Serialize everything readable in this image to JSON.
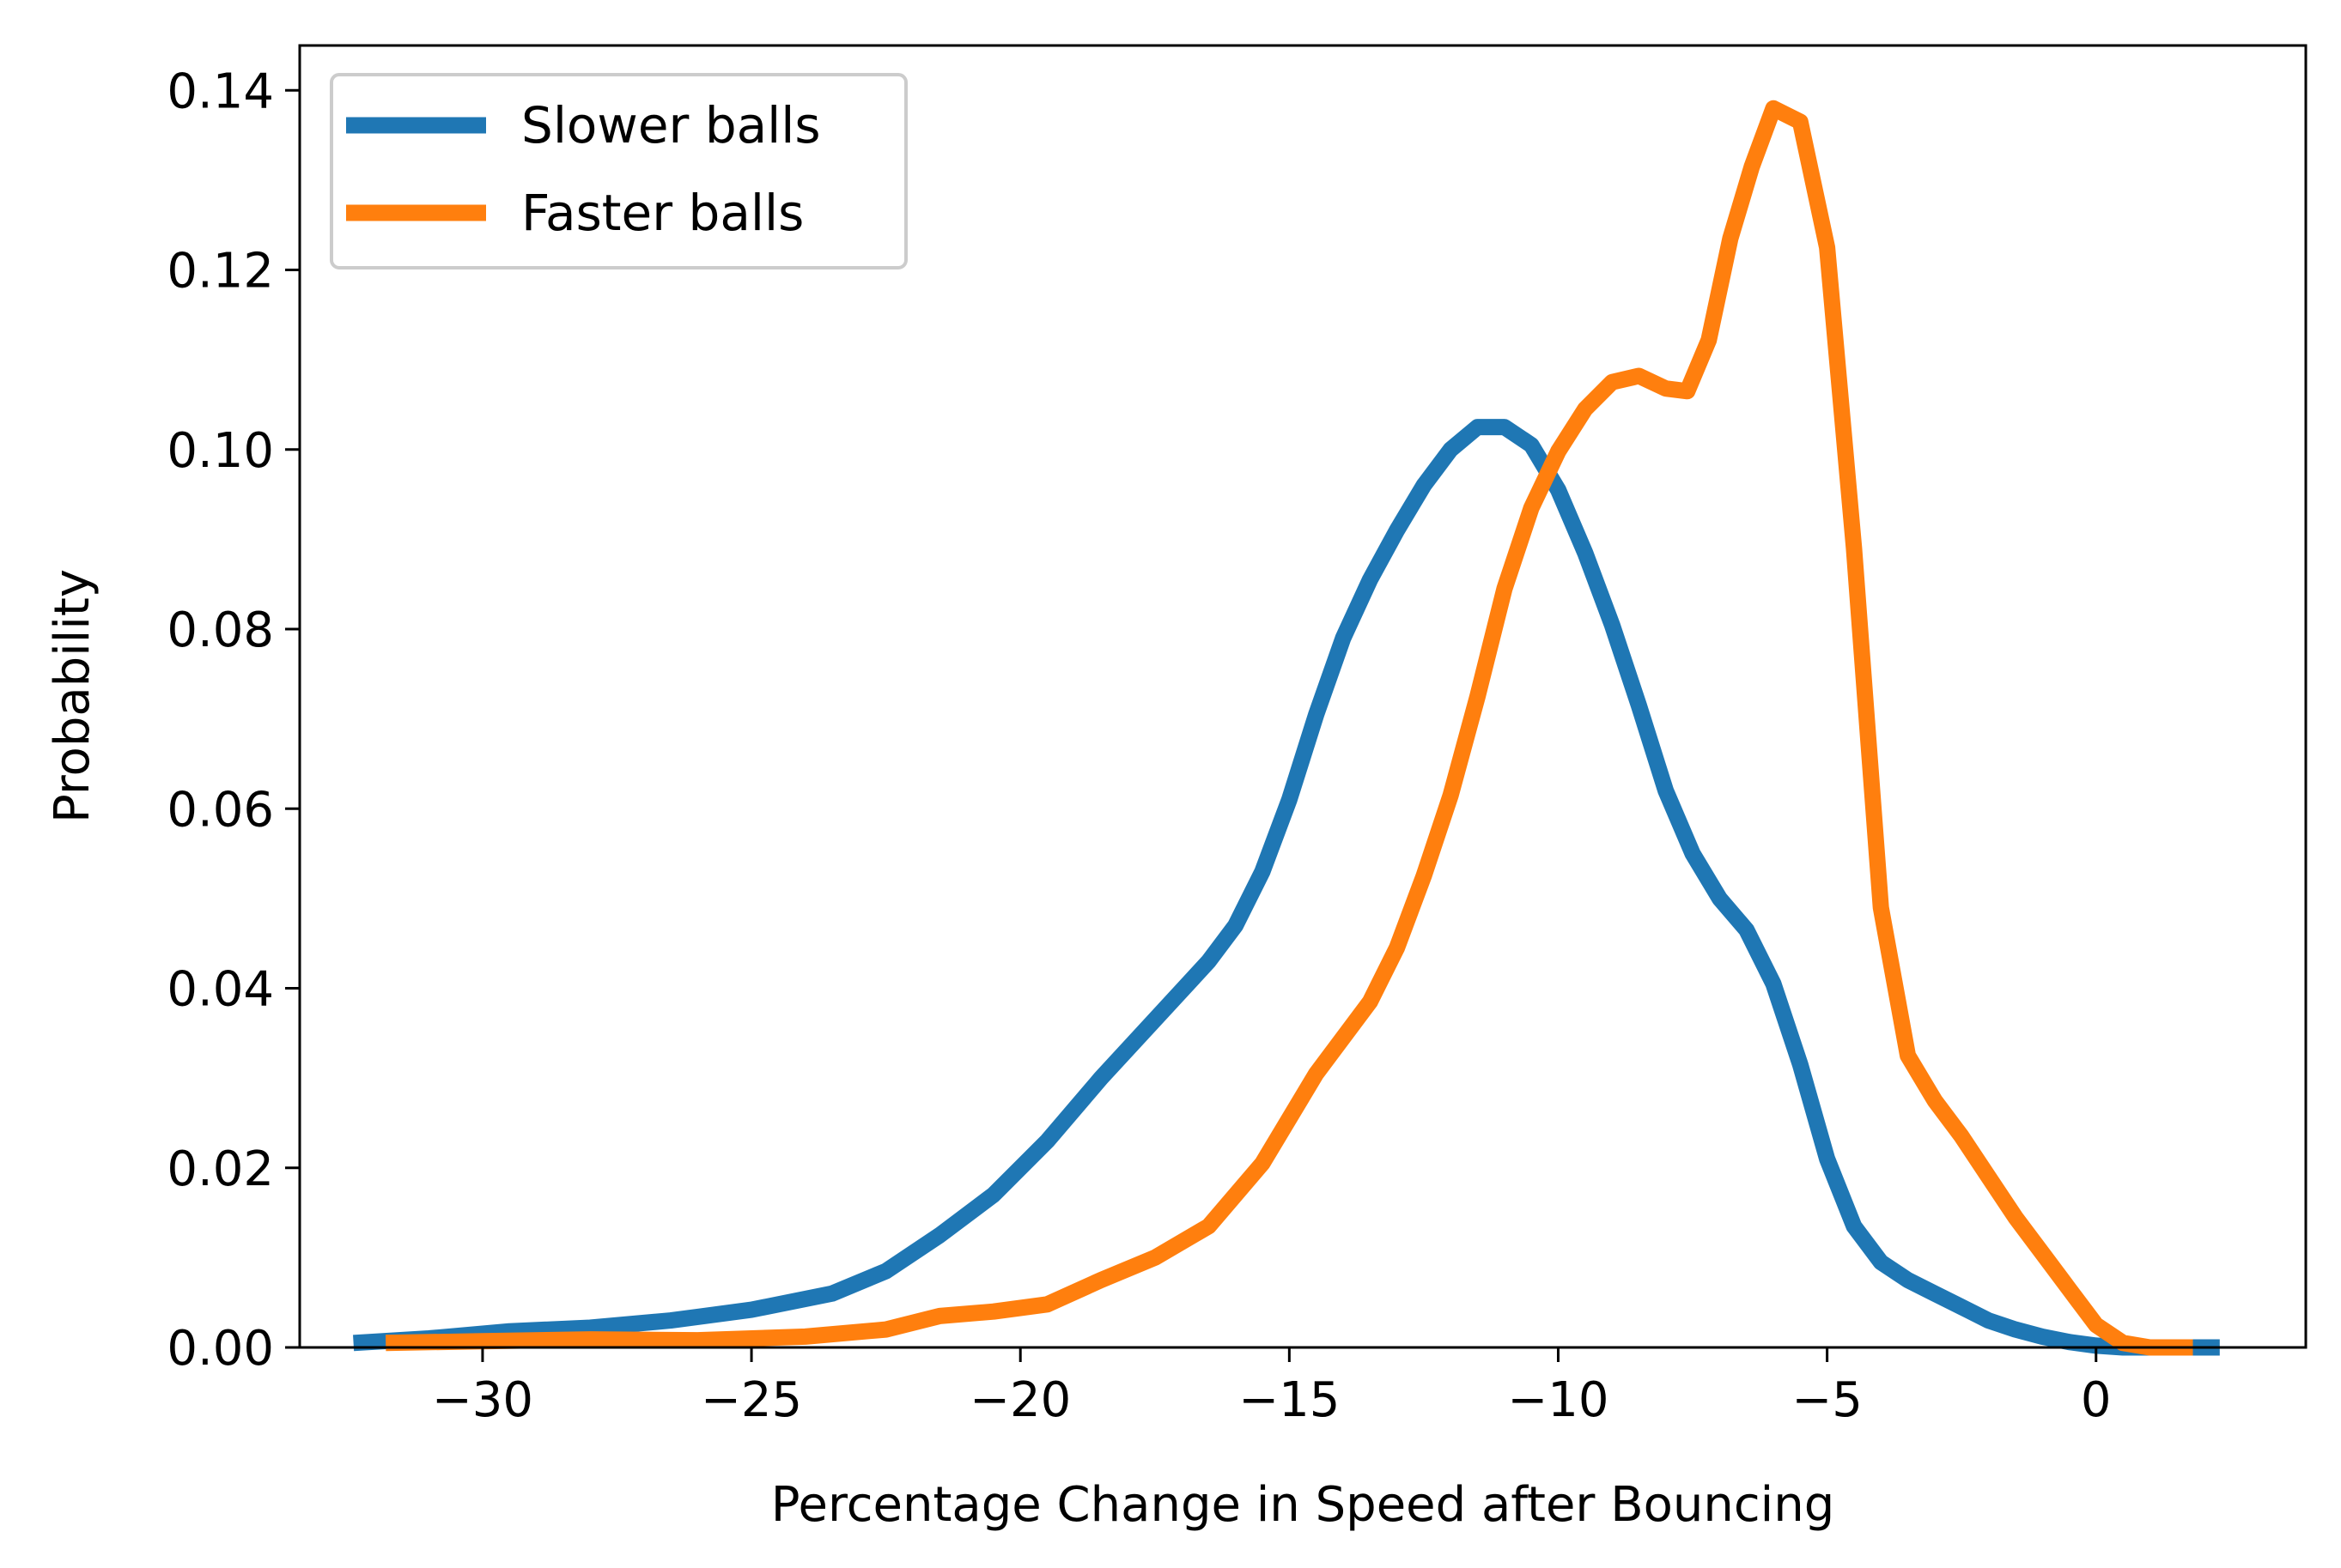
{
  "chart_data": {
    "type": "line",
    "title": "",
    "xlabel": "Percentage Change in Speed after Bouncing",
    "ylabel": "Probability",
    "xlim": [
      -33.4,
      3.9
    ],
    "ylim": [
      0.0,
      0.145
    ],
    "grid": false,
    "legend": {
      "placement": "upper-left"
    },
    "x_ticks": [
      {
        "value": -30,
        "label": "−30"
      },
      {
        "value": -25,
        "label": "−25"
      },
      {
        "value": -20,
        "label": "−20"
      },
      {
        "value": -15,
        "label": "−15"
      },
      {
        "value": -10,
        "label": "−10"
      },
      {
        "value": -5,
        "label": "−5"
      },
      {
        "value": 0,
        "label": "0"
      }
    ],
    "y_ticks": [
      {
        "value": 0.0,
        "label": "0.00"
      },
      {
        "value": 0.02,
        "label": "0.02"
      },
      {
        "value": 0.04,
        "label": "0.04"
      },
      {
        "value": 0.06,
        "label": "0.06"
      },
      {
        "value": 0.08,
        "label": "0.08"
      },
      {
        "value": 0.1,
        "label": "0.10"
      },
      {
        "value": 0.12,
        "label": "0.12"
      },
      {
        "value": 0.14,
        "label": "0.14"
      }
    ],
    "series": [
      {
        "name": "Slower balls",
        "color": "#1f77b4",
        "points": [
          [
            -32.4,
            0.0005
          ],
          [
            -31,
            0.001
          ],
          [
            -29.5,
            0.0018
          ],
          [
            -28,
            0.0022
          ],
          [
            -26.5,
            0.003
          ],
          [
            -25,
            0.0042
          ],
          [
            -23.5,
            0.006
          ],
          [
            -22.5,
            0.0085
          ],
          [
            -21.5,
            0.0125
          ],
          [
            -20.5,
            0.017
          ],
          [
            -19.5,
            0.023
          ],
          [
            -18.5,
            0.03
          ],
          [
            -17.5,
            0.0365
          ],
          [
            -16.5,
            0.043
          ],
          [
            -16,
            0.047
          ],
          [
            -15.5,
            0.053
          ],
          [
            -15,
            0.061
          ],
          [
            -14.5,
            0.0705
          ],
          [
            -14,
            0.079
          ],
          [
            -13.5,
            0.0855
          ],
          [
            -13,
            0.091
          ],
          [
            -12.5,
            0.096
          ],
          [
            -12,
            0.1
          ],
          [
            -11.5,
            0.1025
          ],
          [
            -11,
            0.1025
          ],
          [
            -10.5,
            0.1005
          ],
          [
            -10,
            0.0955
          ],
          [
            -9.5,
            0.0885
          ],
          [
            -9,
            0.0805
          ],
          [
            -8.5,
            0.0715
          ],
          [
            -8,
            0.062
          ],
          [
            -7.5,
            0.055
          ],
          [
            -7,
            0.05
          ],
          [
            -6.5,
            0.0465
          ],
          [
            -6,
            0.0405
          ],
          [
            -5.5,
            0.0315
          ],
          [
            -5,
            0.021
          ],
          [
            -4.5,
            0.0135
          ],
          [
            -4,
            0.0095
          ],
          [
            -3.5,
            0.0075
          ],
          [
            -3,
            0.006
          ],
          [
            -2.5,
            0.0045
          ],
          [
            -2,
            0.003
          ],
          [
            -1.5,
            0.002
          ],
          [
            -1,
            0.0012
          ],
          [
            -0.5,
            0.0006
          ],
          [
            0,
            0.0002
          ],
          [
            0.5,
            0.0
          ],
          [
            1.2,
            0.0
          ],
          [
            2.3,
            0.0
          ]
        ]
      },
      {
        "name": "Faster balls",
        "color": "#ff7f0e",
        "points": [
          [
            -31.8,
            0.0005
          ],
          [
            -30,
            0.0007
          ],
          [
            -28,
            0.0009
          ],
          [
            -26,
            0.0008
          ],
          [
            -24,
            0.0012
          ],
          [
            -22.5,
            0.002
          ],
          [
            -21.5,
            0.0035
          ],
          [
            -20.5,
            0.004
          ],
          [
            -19.5,
            0.0048
          ],
          [
            -18.5,
            0.0075
          ],
          [
            -17.5,
            0.01
          ],
          [
            -16.5,
            0.0135
          ],
          [
            -15.5,
            0.0205
          ],
          [
            -14.5,
            0.0305
          ],
          [
            -13.5,
            0.0385
          ],
          [
            -13,
            0.0445
          ],
          [
            -12.5,
            0.0525
          ],
          [
            -12,
            0.0615
          ],
          [
            -11.5,
            0.0725
          ],
          [
            -11,
            0.0845
          ],
          [
            -10.5,
            0.0935
          ],
          [
            -10,
            0.0998
          ],
          [
            -9.5,
            0.1045
          ],
          [
            -9,
            0.1075
          ],
          [
            -8.5,
            0.1082
          ],
          [
            -8,
            0.1068
          ],
          [
            -7.6,
            0.1065
          ],
          [
            -7.2,
            0.1122
          ],
          [
            -6.8,
            0.1235
          ],
          [
            -6.4,
            0.1315
          ],
          [
            -6,
            0.138
          ],
          [
            -5.5,
            0.1365
          ],
          [
            -5,
            0.1225
          ],
          [
            -4.5,
            0.089
          ],
          [
            -4,
            0.049
          ],
          [
            -3.5,
            0.0325
          ],
          [
            -3,
            0.0275
          ],
          [
            -2.5,
            0.0235
          ],
          [
            -2,
            0.019
          ],
          [
            -1.5,
            0.0145
          ],
          [
            -1,
            0.0105
          ],
          [
            -0.5,
            0.0065
          ],
          [
            0,
            0.0025
          ],
          [
            0.5,
            0.0005
          ],
          [
            1,
            0.0
          ],
          [
            1.8,
            0.0
          ]
        ]
      }
    ]
  }
}
